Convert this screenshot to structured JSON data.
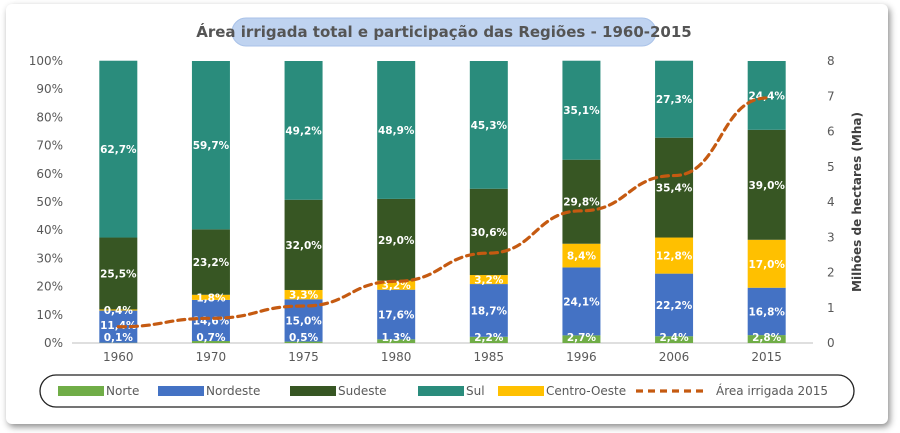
{
  "chart_data": {
    "type": "bar",
    "stacked": true,
    "title": "Área irrigada total e participação das Regiões - 1960-2015",
    "categories": [
      "1960",
      "1970",
      "1975",
      "1980",
      "1985",
      "1996",
      "2006",
      "2015"
    ],
    "series": [
      {
        "name": "Norte",
        "color": "#70ad47",
        "values": [
          0.1,
          0.7,
          0.5,
          1.3,
          2.2,
          2.7,
          2.4,
          2.8
        ],
        "labels": [
          "0,1%",
          "0,7%",
          "0,5%",
          "1,3%",
          "2,2%",
          "2,7%",
          "2,4%",
          "2,8%"
        ]
      },
      {
        "name": "Nordeste",
        "color": "#4472c4",
        "values": [
          11.4,
          14.6,
          15.0,
          17.6,
          18.7,
          24.1,
          22.2,
          16.8
        ],
        "labels": [
          "11,4%",
          "14,6%",
          "15,0%",
          "17,6%",
          "18,7%",
          "24,1%",
          "22,2%",
          "16,8%"
        ]
      },
      {
        "name": "Centro-Oeste",
        "color": "#ffc000",
        "values": [
          0.4,
          1.8,
          3.3,
          3.2,
          3.2,
          8.4,
          12.8,
          17.0
        ],
        "labels": [
          "0,4%",
          "1,8%",
          "3,3%",
          "3,2%",
          "3,2%",
          "8,4%",
          "12,8%",
          "17,0%"
        ]
      },
      {
        "name": "Sudeste",
        "color": "#375623",
        "values": [
          25.5,
          23.2,
          32.0,
          29.0,
          30.6,
          29.8,
          35.4,
          39.0
        ],
        "labels": [
          "25,5%",
          "23,2%",
          "32,0%",
          "29,0%",
          "30,6%",
          "29,8%",
          "35,4%",
          "39,0%"
        ]
      },
      {
        "name": "Sul",
        "color": "#2a8c7c",
        "values": [
          62.7,
          59.7,
          49.2,
          48.9,
          45.3,
          35.1,
          27.3,
          24.4
        ],
        "labels": [
          "62,7%",
          "59,7%",
          "49,2%",
          "48,9%",
          "45,3%",
          "35,1%",
          "27,3%",
          "24,4%"
        ]
      }
    ],
    "line": {
      "name": "Área irrigada 2015",
      "color": "#c55a11",
      "axis": "right",
      "values": [
        0.46,
        0.7,
        1.05,
        1.75,
        2.55,
        3.75,
        4.75,
        6.95
      ]
    },
    "y_left": {
      "ticks": [
        "0%",
        "10%",
        "20%",
        "30%",
        "40%",
        "50%",
        "60%",
        "70%",
        "80%",
        "90%",
        "100%"
      ],
      "range": [
        0,
        100
      ]
    },
    "y_right": {
      "label": "Milhões de hectares (Mha)",
      "ticks": [
        "0",
        "1",
        "2",
        "3",
        "4",
        "5",
        "6",
        "7",
        "8"
      ],
      "range": [
        0,
        8
      ]
    },
    "legend": {
      "placement": "bottom",
      "items": [
        {
          "name": "Norte",
          "color": "#70ad47"
        },
        {
          "name": "Nordeste",
          "color": "#4472c4"
        },
        {
          "name": "Sudeste",
          "color": "#375623"
        },
        {
          "name": "Sul",
          "color": "#2a8c7c"
        },
        {
          "name": "Centro-Oeste",
          "color": "#ffc000"
        },
        {
          "name": "Área irrigada 2015",
          "color": "#c55a11"
        }
      ]
    },
    "grid": false
  }
}
